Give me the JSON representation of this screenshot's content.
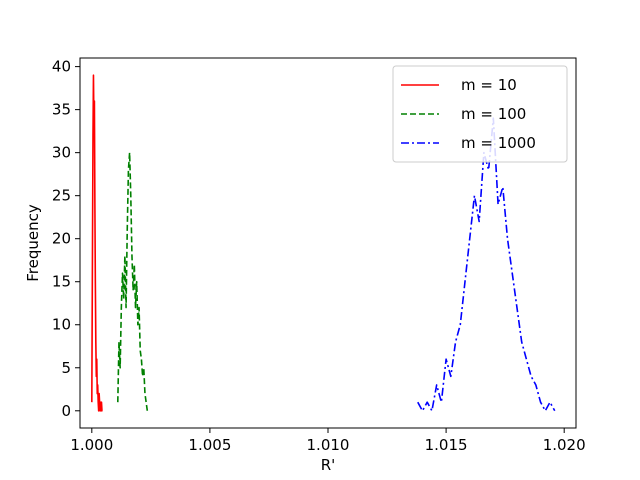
{
  "chart_data": {
    "type": "line",
    "title": "",
    "xlabel": "R'",
    "ylabel": "Frequency",
    "xlim": [
      0.9995,
      1.0205
    ],
    "ylim": [
      -2,
      41
    ],
    "xticks": [
      1.0,
      1.005,
      1.01,
      1.015,
      1.02
    ],
    "xtick_labels": [
      "1.000",
      "1.005",
      "1.010",
      "1.015",
      "1.020"
    ],
    "yticks": [
      0,
      5,
      10,
      15,
      20,
      25,
      30,
      35,
      40
    ],
    "ytick_labels": [
      "0",
      "5",
      "10",
      "15",
      "20",
      "25",
      "30",
      "35",
      "40"
    ],
    "grid": false,
    "legend": "top-right",
    "series": [
      {
        "name": "m = 10",
        "color": "#ff0000",
        "linestyle": "solid",
        "x": [
          1.0,
          1.00003,
          1.00005,
          1.00007,
          1.00009,
          1.00011,
          1.00013,
          1.00015,
          1.00017,
          1.00019,
          1.00021,
          1.00023,
          1.00025,
          1.00027,
          1.00029,
          1.00031,
          1.00033,
          1.00035,
          1.00037,
          1.00039,
          1.00041,
          1.00043,
          1.00045
        ],
        "y": [
          1,
          20,
          32,
          39,
          33,
          36,
          24,
          15,
          8,
          4,
          6,
          2,
          3,
          1,
          0,
          2,
          1,
          0,
          1,
          0,
          1,
          0,
          0
        ]
      },
      {
        "name": "m = 100",
        "color": "#008000",
        "linestyle": "dashed",
        "x": [
          1.0011,
          1.00115,
          1.0012,
          1.00125,
          1.0013,
          1.00135,
          1.0014,
          1.00145,
          1.0015,
          1.00155,
          1.0016,
          1.00165,
          1.0017,
          1.00175,
          1.0018,
          1.00185,
          1.0019,
          1.00195,
          1.002,
          1.00205,
          1.0021,
          1.00215,
          1.0022,
          1.00225,
          1.0023,
          1.00235
        ],
        "y": [
          1,
          8,
          5,
          12,
          16,
          13,
          18,
          12,
          21,
          28,
          30,
          25,
          18,
          14,
          17,
          12,
          15,
          10,
          12,
          7,
          6,
          4,
          5,
          2,
          1,
          0
        ]
      },
      {
        "name": "m = 1000",
        "color": "#0000ff",
        "linestyle": "dashdot",
        "x": [
          1.0138,
          1.014,
          1.0142,
          1.0144,
          1.0146,
          1.0148,
          1.015,
          1.0152,
          1.0154,
          1.0156,
          1.0158,
          1.016,
          1.0162,
          1.0164,
          1.0166,
          1.0168,
          1.017,
          1.0172,
          1.0174,
          1.0176,
          1.0178,
          1.018,
          1.0182,
          1.0184,
          1.0186,
          1.0188,
          1.019,
          1.0192,
          1.0194,
          1.0196
        ],
        "y": [
          1,
          0,
          1,
          0,
          3,
          1,
          6,
          4,
          8,
          10,
          15,
          20,
          25,
          22,
          30,
          28,
          34,
          24,
          26,
          20,
          16,
          12,
          8,
          6,
          4,
          3,
          1,
          0,
          1,
          0
        ]
      }
    ]
  }
}
